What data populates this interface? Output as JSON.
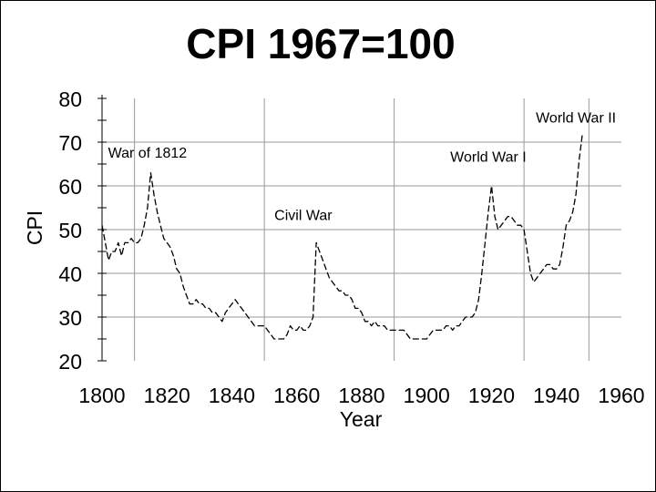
{
  "chart_data": {
    "type": "line",
    "title": "CPI 1967=100",
    "xlabel": "Year",
    "ylabel": "CPI",
    "xlim": [
      1800,
      1960
    ],
    "ylim": [
      20,
      80
    ],
    "x_ticks": [
      "1800",
      "1820",
      "1840",
      "1860",
      "1880",
      "1900",
      "1920",
      "1940",
      "1960"
    ],
    "y_ticks": [
      "20",
      "30",
      "40",
      "50",
      "60",
      "70",
      "80"
    ],
    "grid": true,
    "line_style": "dashed",
    "colors": {
      "line": "#000000",
      "grid": "#999999",
      "axis": "#000000"
    },
    "annotations": [
      {
        "text": "War of 1812",
        "x": 1814,
        "y": 66.5
      },
      {
        "text": "Civil War",
        "x": 1862,
        "y": 52.2
      },
      {
        "text": "World War I",
        "x": 1919,
        "y": 65.5
      },
      {
        "text": "World War II",
        "x": 1946,
        "y": 74.5
      }
    ],
    "series": [
      {
        "x": [
          1800,
          1801,
          1802,
          1803,
          1804,
          1805,
          1806,
          1807,
          1808,
          1809,
          1810,
          1811,
          1812,
          1813,
          1814,
          1815,
          1816,
          1817,
          1818,
          1819,
          1820,
          1821,
          1822,
          1823,
          1824,
          1825,
          1826,
          1827,
          1828,
          1829,
          1830,
          1831,
          1832,
          1833,
          1834,
          1835,
          1836,
          1837,
          1838,
          1839,
          1840,
          1841,
          1842,
          1843,
          1844,
          1845,
          1846,
          1847,
          1848,
          1849,
          1850,
          1851,
          1852,
          1853,
          1854,
          1855,
          1856,
          1857,
          1858,
          1859,
          1860,
          1861,
          1862,
          1863,
          1864,
          1865,
          1866,
          1867,
          1868,
          1869,
          1870,
          1871,
          1872,
          1873,
          1874,
          1875,
          1876,
          1877,
          1878,
          1879,
          1880,
          1881,
          1882,
          1883,
          1884,
          1885,
          1886,
          1887,
          1888,
          1889,
          1890,
          1891,
          1892,
          1893,
          1894,
          1895,
          1896,
          1897,
          1898,
          1899,
          1900,
          1901,
          1902,
          1903,
          1904,
          1905,
          1906,
          1907,
          1908,
          1909,
          1910,
          1911,
          1912,
          1913,
          1914,
          1915,
          1916,
          1917,
          1918,
          1919,
          1920,
          1921,
          1922,
          1923,
          1924,
          1925,
          1926,
          1927,
          1928,
          1929,
          1930,
          1931,
          1932,
          1933,
          1934,
          1935,
          1936,
          1937,
          1938,
          1939,
          1940,
          1941,
          1942,
          1943,
          1944,
          1945,
          1946,
          1947,
          1948
        ],
        "y": [
          51,
          47,
          43,
          45,
          45,
          47,
          44,
          47,
          47,
          48,
          47,
          47,
          48,
          51,
          55,
          63,
          58,
          54,
          51,
          48,
          47,
          46,
          44,
          41,
          40,
          37,
          35,
          33,
          33,
          34,
          33,
          33,
          32,
          32,
          31,
          31,
          30,
          29,
          31,
          32,
          33,
          34,
          33,
          32,
          31,
          30,
          29,
          28,
          28,
          28,
          28,
          27,
          26,
          25,
          25,
          25,
          25,
          26,
          28,
          27,
          27,
          28,
          27,
          27,
          28,
          30,
          47,
          45,
          43,
          41,
          39,
          38,
          37,
          36,
          36,
          35,
          35,
          34,
          32,
          32,
          31,
          29,
          29,
          28,
          29,
          28,
          28,
          28,
          27,
          27,
          27,
          27,
          27,
          27,
          26,
          25,
          25,
          25,
          25,
          25,
          25,
          26,
          27,
          27,
          27,
          27,
          28,
          28,
          27,
          28,
          28,
          29,
          30,
          30,
          30,
          31,
          34,
          40,
          47,
          54,
          60,
          53,
          50,
          51,
          52,
          53,
          53,
          52,
          51,
          51,
          50,
          45,
          40,
          38,
          39,
          40,
          41,
          42,
          42,
          41,
          41,
          42,
          46,
          51,
          52,
          54,
          58,
          66,
          72
        ]
      }
    ]
  }
}
